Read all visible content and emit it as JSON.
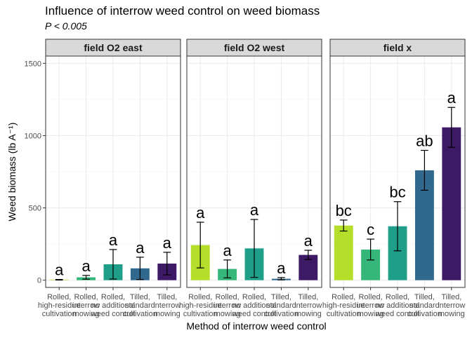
{
  "chart_data": {
    "type": "bar",
    "title": "Influence of interrow weed control on weed biomass",
    "subtitle": "P < 0.005",
    "xlabel": "Method of interrow weed control",
    "ylabel": "Weed biomass (lb A⁻¹)",
    "ylim": [
      -50,
      1550
    ],
    "yticks": [
      0,
      500,
      1000,
      1500
    ],
    "ytick_labels": [
      "0",
      "500",
      "1000",
      "1500"
    ],
    "grid": true,
    "categories": [
      [
        "Rolled,",
        "high-residue",
        "cultivation"
      ],
      [
        "Rolled,",
        "interrow",
        "mowing"
      ],
      [
        "Rolled,",
        "no additional",
        "weed control"
      ],
      [
        "Tilled,",
        "standard",
        "cultivation"
      ],
      [
        "Tilled,",
        "interrow",
        "mowing"
      ]
    ],
    "colors": [
      "#b5de2b",
      "#35b779",
      "#1f9e89",
      "#31688e",
      "#3e1a66"
    ],
    "panels": [
      {
        "name": "field O2 east",
        "values": [
          3,
          20,
          110,
          82,
          115
        ],
        "errors": [
          2,
          13,
          102,
          77,
          78
        ],
        "letters": [
          "a",
          "a",
          "a",
          "a",
          "a"
        ]
      },
      {
        "name": "field O2 west",
        "values": [
          243,
          78,
          220,
          10,
          175
        ],
        "errors": [
          158,
          62,
          200,
          8,
          32
        ],
        "letters": [
          "a",
          "a",
          "a",
          "a",
          "a"
        ]
      },
      {
        "name": "field x",
        "values": [
          378,
          212,
          373,
          760,
          1057
        ],
        "errors": [
          38,
          72,
          170,
          138,
          138
        ],
        "letters": [
          "bc",
          "c",
          "bc",
          "ab",
          "a"
        ]
      }
    ]
  }
}
